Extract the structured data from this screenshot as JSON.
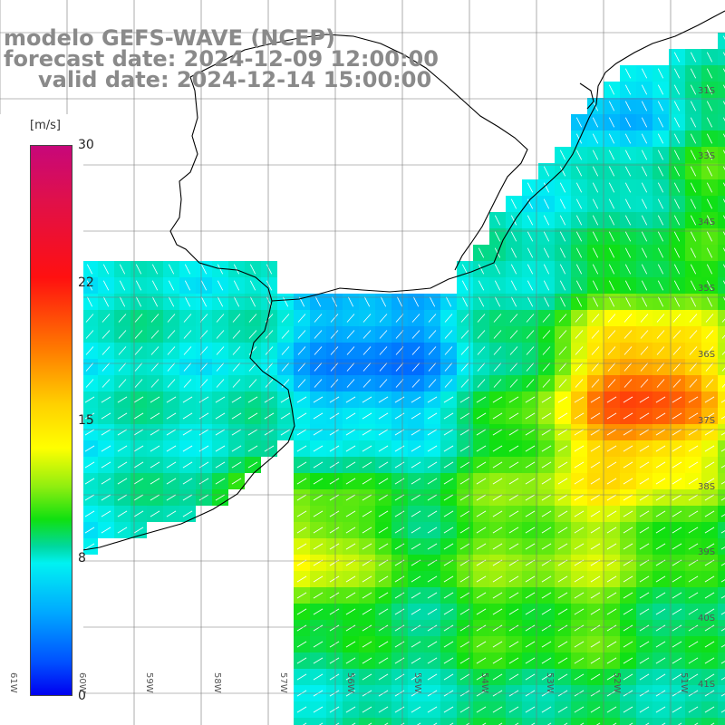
{
  "header": {
    "model": "modelo GEFS-WAVE (NCEP)",
    "forecast": "forecast date: 2024-12-09 12:00:00",
    "valid": "valid date: 2024-12-14 15:00:00"
  },
  "colorbar": {
    "unit": "[m/s]",
    "ticks": [
      "30",
      "22",
      "15",
      "8",
      "0"
    ]
  },
  "lat_labels": [
    "31S",
    "33S",
    "34S",
    "35S",
    "36S",
    "37S",
    "38S",
    "39S",
    "40S",
    "41S"
  ],
  "lon_labels": [
    "61W",
    "60W",
    "59W",
    "58W",
    "57W",
    "56W",
    "55W",
    "54W",
    "53W",
    "52W",
    "51W"
  ],
  "colors": {
    "land": "#ffffff",
    "grid": "#777777",
    "coast": "#000000",
    "arrow": "#ffffff",
    "text": "#8a8a8a"
  }
}
